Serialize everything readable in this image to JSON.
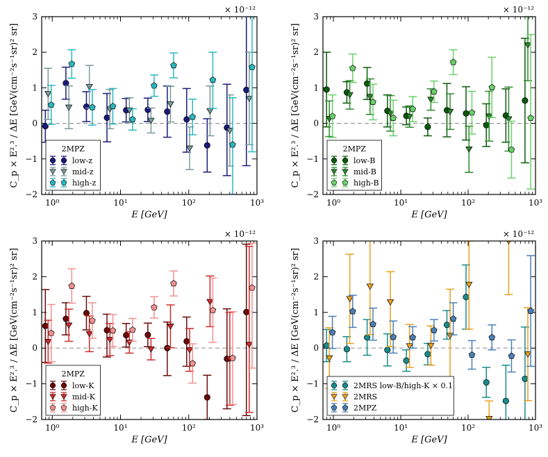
{
  "chart_data": [
    {
      "type": "scatter",
      "panel": "top-left",
      "xlabel": "E  [GeV]",
      "ylabel": "C_p × E^{2.3} / ΔE [GeV(cm^{-2}s^{-1}sr)^{2} sr]",
      "y_multiplier": "× 10^{-12}",
      "x_scale": "log",
      "xlim": [
        0.7,
        1000
      ],
      "ylim": [
        -2,
        3
      ],
      "x_ticks": [
        1,
        10,
        100,
        1000
      ],
      "x_tick_labels": [
        "10^0",
        "10^1",
        "10^2",
        "10^3"
      ],
      "y_ticks": [
        -2,
        -1,
        0,
        1,
        2,
        3
      ],
      "y_tick_labels": [
        "−2",
        "−1",
        "0",
        "1",
        "2",
        "3"
      ],
      "legend": {
        "title": "2MPZ",
        "placement": "lower-left"
      },
      "series": [
        {
          "name": "low-z",
          "color": "#1a1a7a",
          "marker": "circle",
          "x": [
            0.85,
            1.7,
            3.4,
            6.8,
            13,
            27,
            52,
            100,
            200,
            390,
            750
          ],
          "y": [
            -0.08,
            1.13,
            0.47,
            0.16,
            0.37,
            0.38,
            0.33,
            0.11,
            -0.62,
            -0.12,
            0.94
          ],
          "err_low": [
            0.45,
            0.45,
            0.42,
            0.68,
            0.33,
            0.33,
            0.72,
            0.92,
            0.75,
            1.35,
            2.13
          ],
          "err_high": [
            0.45,
            0.45,
            0.42,
            0.68,
            0.33,
            0.33,
            0.72,
            0.87,
            0.75,
            1.22,
            2.1
          ]
        },
        {
          "name": "mid-z",
          "color": "#7a9a9a",
          "marker": "triangle-down",
          "x": [
            0.87,
            1.75,
            3.5,
            7.0,
            13.5,
            28,
            54,
            103,
            205,
            400,
            770
          ],
          "y": [
            0.83,
            0.45,
            1.03,
            0.4,
            0.37,
            0.08,
            0.54,
            -0.7,
            0.35,
            -0.2,
            0.7
          ],
          "err_low": [
            0.72,
            0.6,
            0.6,
            0.55,
            0.35,
            0.35,
            0.5,
            0.6,
            0.7,
            1.0,
            1.3
          ],
          "err_high": [
            0.72,
            0.6,
            0.6,
            0.55,
            0.35,
            0.35,
            0.5,
            0.6,
            0.7,
            1.0,
            1.3
          ]
        },
        {
          "name": "high-z",
          "color": "#2ab8c0",
          "marker": "pentagon",
          "x": [
            0.9,
            1.8,
            3.6,
            7.2,
            14,
            29,
            56,
            106,
            210,
            410,
            790
          ],
          "y": [
            0.52,
            1.67,
            0.45,
            0.48,
            0.11,
            1.06,
            1.63,
            0.18,
            1.22,
            -0.6,
            1.58
          ],
          "err_low": [
            0.55,
            0.4,
            0.5,
            0.5,
            0.3,
            0.3,
            0.35,
            0.5,
            0.8,
            1.4,
            2.38
          ],
          "err_high": [
            0.55,
            0.4,
            0.5,
            0.5,
            0.3,
            0.3,
            0.35,
            0.5,
            0.78,
            1.32,
            1.42
          ]
        }
      ]
    },
    {
      "type": "scatter",
      "panel": "top-right",
      "xlabel": "E  [GeV]",
      "ylabel": "C_p × E^{2.3} / ΔE [GeV(cm^{-2}s^{-1}sr)^{2} sr]",
      "y_multiplier": "× 10^{-12}",
      "x_scale": "log",
      "xlim": [
        0.7,
        1000
      ],
      "ylim": [
        -2,
        3
      ],
      "x_ticks": [
        1,
        10,
        100,
        1000
      ],
      "x_tick_labels": [
        "10^0",
        "10^1",
        "10^2",
        "10^3"
      ],
      "y_ticks": [
        -2,
        -1,
        0,
        1,
        2,
        3
      ],
      "y_tick_labels": [
        "−2",
        "−1",
        "0",
        "1",
        "2",
        "3"
      ],
      "legend": {
        "title": "2MPZ",
        "placement": "lower-left"
      },
      "series": [
        {
          "name": "low-B",
          "color": "#0a5a0a",
          "marker": "circle",
          "x": [
            0.85,
            1.7,
            3.4,
            6.8,
            13,
            27,
            52,
            100,
            200,
            390,
            750
          ],
          "y": [
            0.95,
            0.87,
            1.12,
            0.35,
            0.21,
            -0.1,
            0.37,
            0.28,
            -0.05,
            0.22,
            0.64
          ],
          "err_low": [
            1.05,
            0.3,
            0.45,
            0.45,
            0.25,
            0.25,
            0.75,
            0.75,
            0.6,
            0.75,
            1.75
          ],
          "err_high": [
            1.05,
            0.3,
            0.45,
            0.45,
            0.25,
            0.25,
            0.75,
            0.75,
            0.6,
            0.75,
            1.75
          ]
        },
        {
          "name": "mid-B",
          "color": "#2a8a2a",
          "marker": "triangle-down",
          "x": [
            0.87,
            1.75,
            3.5,
            7.0,
            13.5,
            28,
            54,
            103,
            205,
            400,
            770
          ],
          "y": [
            0.13,
            0.8,
            0.75,
            0.28,
            0.19,
            0.67,
            0.33,
            -0.73,
            0.2,
            0.12,
            2.2
          ],
          "err_low": [
            0.5,
            0.4,
            0.5,
            0.5,
            0.3,
            0.3,
            0.5,
            0.65,
            0.7,
            0.9,
            1.0
          ],
          "err_high": [
            0.5,
            0.4,
            0.5,
            0.5,
            0.3,
            0.3,
            0.5,
            0.65,
            0.7,
            0.9,
            0.8
          ]
        },
        {
          "name": "high-B",
          "color": "#6ad06a",
          "marker": "pentagon",
          "x": [
            0.9,
            1.8,
            3.6,
            7.2,
            14,
            29,
            56,
            106,
            210,
            410,
            790
          ],
          "y": [
            0.2,
            1.55,
            0.6,
            0.15,
            0.4,
            0.89,
            1.72,
            0.3,
            1.01,
            -0.74,
            0.15
          ],
          "err_low": [
            0.6,
            0.4,
            0.5,
            0.5,
            0.35,
            0.3,
            0.35,
            0.6,
            0.85,
            0.8,
            2.0
          ],
          "err_high": [
            0.6,
            0.4,
            0.5,
            0.5,
            0.35,
            0.3,
            0.35,
            0.6,
            0.85,
            0.8,
            2.35
          ]
        }
      ]
    },
    {
      "type": "scatter",
      "panel": "bottom-left",
      "xlabel": "E  [GeV]",
      "ylabel": "C_p × E^{2.3} / ΔE [GeV(cm^{-2}s^{-1}sr)^{2} sr]",
      "y_multiplier": "× 10^{-12}",
      "x_scale": "log",
      "xlim": [
        0.7,
        1000
      ],
      "ylim": [
        -2,
        3
      ],
      "x_ticks": [
        1,
        10,
        100,
        1000
      ],
      "x_tick_labels": [
        "10^0",
        "10^1",
        "10^2",
        "10^3"
      ],
      "y_ticks": [
        -2,
        -1,
        0,
        1,
        2,
        3
      ],
      "y_tick_labels": [
        "−2",
        "−1",
        "0",
        "1",
        "2",
        "3"
      ],
      "legend": {
        "title": "2MPZ",
        "placement": "lower-left"
      },
      "series": [
        {
          "name": "low-K",
          "color": "#6a0a0a",
          "marker": "circle",
          "x": [
            0.85,
            1.7,
            3.4,
            6.8,
            13,
            27,
            52,
            100,
            200,
            390,
            750
          ],
          "y": [
            0.62,
            0.82,
            0.98,
            0.5,
            0.36,
            0.37,
            0.0,
            0.19,
            -1.38,
            -0.3,
            1.01
          ],
          "err_low": [
            1.02,
            0.45,
            0.47,
            0.75,
            0.33,
            0.33,
            0.77,
            0.7,
            0.62,
            1.4,
            2.9
          ],
          "err_high": [
            1.02,
            0.45,
            0.47,
            0.45,
            0.33,
            0.33,
            0.73,
            0.68,
            0.62,
            1.4,
            1.9
          ]
        },
        {
          "name": "mid-K",
          "color": "#d02a2a",
          "marker": "triangle-down",
          "x": [
            0.87,
            1.75,
            3.5,
            7.0,
            13.5,
            28,
            54,
            103,
            205,
            400,
            770
          ],
          "y": [
            0.18,
            0.64,
            0.4,
            0.24,
            0.16,
            -0.03,
            0.61,
            -0.05,
            1.3,
            -0.3,
            0.1
          ],
          "err_low": [
            0.6,
            0.45,
            0.5,
            0.45,
            0.3,
            0.3,
            0.6,
            0.6,
            0.7,
            1.3,
            1.9
          ],
          "err_high": [
            0.6,
            0.45,
            0.5,
            0.45,
            0.3,
            0.3,
            0.6,
            0.6,
            0.72,
            1.3,
            2.75
          ]
        },
        {
          "name": "high-K",
          "color": "#f29090",
          "marker": "pentagon",
          "x": [
            0.9,
            1.8,
            3.6,
            7.2,
            14,
            29,
            56,
            106,
            210,
            410,
            790
          ],
          "y": [
            0.42,
            1.74,
            0.77,
            0.49,
            0.51,
            1.14,
            1.81,
            -0.43,
            1.06,
            -0.28,
            1.69
          ],
          "err_low": [
            0.8,
            0.48,
            0.5,
            0.45,
            0.32,
            0.3,
            0.35,
            0.55,
            0.9,
            1.3,
            2.25
          ],
          "err_high": [
            0.8,
            0.48,
            0.5,
            0.45,
            0.32,
            0.3,
            0.35,
            0.55,
            0.9,
            1.3,
            1.25
          ]
        }
      ]
    },
    {
      "type": "scatter",
      "panel": "bottom-right",
      "xlabel": "E  [GeV]",
      "ylabel": "C_p × E^{2.3} / ΔE [GeV(cm^{-2}s^{-1}sr)^{2} sr]",
      "y_multiplier": "× 10^{-12}",
      "x_scale": "log",
      "xlim": [
        0.7,
        1000
      ],
      "ylim": [
        -2,
        3
      ],
      "x_ticks": [
        1,
        10,
        100,
        1000
      ],
      "x_tick_labels": [
        "10^0",
        "10^1",
        "10^2",
        "10^3"
      ],
      "y_ticks": [
        -2,
        -1,
        0,
        1,
        2,
        3
      ],
      "y_tick_labels": [
        "−2",
        "−1",
        "0",
        "1",
        "2",
        "3"
      ],
      "legend": {
        "title": "",
        "placement": "lower-left"
      },
      "series": [
        {
          "name": "2MRS low-B/high-K × 0.1",
          "color": "#1a8a8a",
          "marker": "circle",
          "x": [
            0.85,
            1.7,
            3.4,
            6.8,
            13,
            27,
            52,
            100,
            200,
            390,
            750
          ],
          "y": [
            0.07,
            -0.03,
            0.3,
            -0.05,
            -0.35,
            -0.17,
            0.65,
            1.43,
            -0.96,
            -1.48,
            -0.86
          ],
          "err_low": [
            0.45,
            0.35,
            0.5,
            0.45,
            0.3,
            0.3,
            0.4,
            0.9,
            0.42,
            1.0,
            1.45
          ],
          "err_high": [
            0.45,
            0.35,
            0.5,
            0.45,
            0.3,
            0.3,
            0.4,
            0.9,
            0.42,
            1.0,
            1.45
          ]
        },
        {
          "name": "2MRS",
          "color": "#e8a020",
          "marker": "triangle-down",
          "x": [
            0.87,
            1.75,
            3.5,
            7.0,
            13.5,
            28,
            54,
            103,
            205,
            400,
            770
          ],
          "y": [
            -0.28,
            1.38,
            1.73,
            1.29,
            0.06,
            0.07,
            0.35,
            1.78,
            -1.98,
            3.0,
            -0.17
          ],
          "err_low": [
            0.85,
            1.25,
            1.35,
            1.25,
            0.6,
            0.55,
            1.3,
            1.25,
            0.5,
            1.5,
            1.3
          ],
          "err_high": [
            0.85,
            1.25,
            1.35,
            0.85,
            0.6,
            0.55,
            1.3,
            1.22,
            0.5,
            0.0,
            1.3
          ]
        },
        {
          "name": "2MPZ",
          "color": "#4a80b8",
          "marker": "pentagon",
          "x": [
            0.9,
            1.8,
            3.6,
            7.2,
            14,
            29,
            56,
            106,
            210,
            410,
            790
          ],
          "y": [
            0.44,
            1.03,
            0.67,
            0.31,
            0.3,
            0.5,
            0.82,
            -0.19,
            0.3,
            -0.22,
            1.04
          ],
          "err_low": [
            0.45,
            0.45,
            0.45,
            0.45,
            0.3,
            0.3,
            0.45,
            0.4,
            0.35,
            0.45,
            1.55
          ],
          "err_high": [
            0.45,
            0.45,
            0.45,
            0.45,
            0.3,
            0.3,
            0.45,
            0.4,
            0.35,
            0.45,
            1.55
          ]
        }
      ]
    }
  ]
}
